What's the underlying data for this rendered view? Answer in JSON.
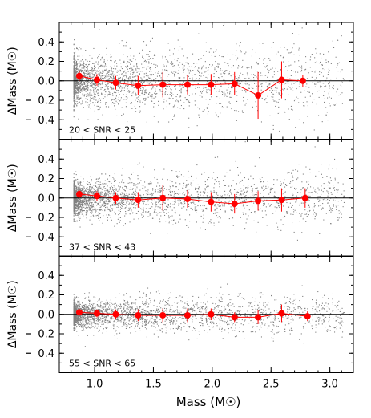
{
  "chart_data": [
    {
      "type": "scatter",
      "annotation": "20 < SNR < 25",
      "ylabel": "ΔMass (M☉)",
      "xlabel": "",
      "xlim": [
        0.7,
        3.2
      ],
      "ylim": [
        -0.6,
        0.6
      ],
      "yticks": [
        "0.4",
        "0.2",
        "0.0",
        "0.2",
        "0.4"
      ],
      "ytick_values": [
        0.4,
        0.2,
        0.0,
        -0.2,
        -0.4
      ],
      "xticks": [
        1.0,
        1.5,
        2.0,
        2.5,
        3.0
      ],
      "reference_line": 0.0,
      "colors": {
        "scatter": "#808080",
        "binned": "#ff0000"
      },
      "series": [
        {
          "x": [
            0.87,
            1.02,
            1.18,
            1.37,
            1.58,
            1.79,
            1.99,
            2.19,
            2.39,
            2.59,
            2.77
          ],
          "y": [
            0.05,
            0.01,
            -0.02,
            -0.05,
            -0.04,
            -0.04,
            -0.04,
            -0.03,
            -0.15,
            0.01,
            0.0
          ],
          "yerr": [
            0.05,
            0.06,
            0.07,
            0.1,
            0.13,
            0.1,
            0.11,
            0.12,
            0.24,
            0.19,
            0.06
          ]
        }
      ],
      "cloud": {
        "center_x": 0.92,
        "center_y": 0.0,
        "spread_y": 0.22
      }
    },
    {
      "type": "scatter",
      "annotation": "37 < SNR < 43",
      "ylabel": "ΔMass (M☉)",
      "xlabel": "",
      "xlim": [
        0.7,
        3.2
      ],
      "ylim": [
        -0.6,
        0.6
      ],
      "yticks": [
        "0.4",
        "0.2",
        "0.0",
        "0.2",
        "0.4"
      ],
      "ytick_values": [
        0.4,
        0.2,
        0.0,
        -0.2,
        -0.4
      ],
      "xticks": [
        1.0,
        1.5,
        2.0,
        2.5,
        3.0
      ],
      "reference_line": 0.0,
      "colors": {
        "scatter": "#808080",
        "binned": "#ff0000"
      },
      "series": [
        {
          "x": [
            0.87,
            1.02,
            1.18,
            1.37,
            1.58,
            1.79,
            1.99,
            2.19,
            2.39,
            2.59,
            2.79
          ],
          "y": [
            0.04,
            0.02,
            0.0,
            -0.02,
            0.0,
            -0.01,
            -0.04,
            -0.06,
            -0.03,
            -0.02,
            0.0
          ],
          "yerr": [
            0.04,
            0.05,
            0.06,
            0.08,
            0.13,
            0.09,
            0.1,
            0.1,
            0.1,
            0.12,
            0.1
          ]
        }
      ],
      "cloud": {
        "center_x": 0.92,
        "center_y": 0.0,
        "spread_y": 0.16
      }
    },
    {
      "type": "scatter",
      "annotation": "55 < SNR < 65",
      "ylabel": "ΔMass (M☉)",
      "xlabel": "Mass (M☉)",
      "xlim": [
        0.7,
        3.2
      ],
      "ylim": [
        -0.6,
        0.6
      ],
      "yticks": [
        "0.4",
        "0.2",
        "0.0",
        "0.2",
        "0.4"
      ],
      "ytick_values": [
        0.4,
        0.2,
        0.0,
        -0.2,
        -0.4
      ],
      "xticks": [
        "1.0",
        "1.5",
        "2.0",
        "2.5",
        "3.0"
      ],
      "xtick_values": [
        1.0,
        1.5,
        2.0,
        2.5,
        3.0
      ],
      "reference_line": 0.0,
      "colors": {
        "scatter": "#808080",
        "binned": "#ff0000"
      },
      "series": [
        {
          "x": [
            0.87,
            1.02,
            1.18,
            1.37,
            1.58,
            1.79,
            1.99,
            2.19,
            2.39,
            2.59,
            2.81
          ],
          "y": [
            0.02,
            0.01,
            0.0,
            -0.01,
            -0.01,
            -0.01,
            0.0,
            -0.03,
            -0.03,
            0.01,
            -0.02
          ],
          "yerr": [
            0.03,
            0.04,
            0.05,
            0.06,
            0.07,
            0.07,
            0.06,
            0.05,
            0.07,
            0.09,
            0.05
          ]
        }
      ],
      "cloud": {
        "center_x": 0.92,
        "center_y": 0.0,
        "spread_y": 0.12
      }
    }
  ]
}
